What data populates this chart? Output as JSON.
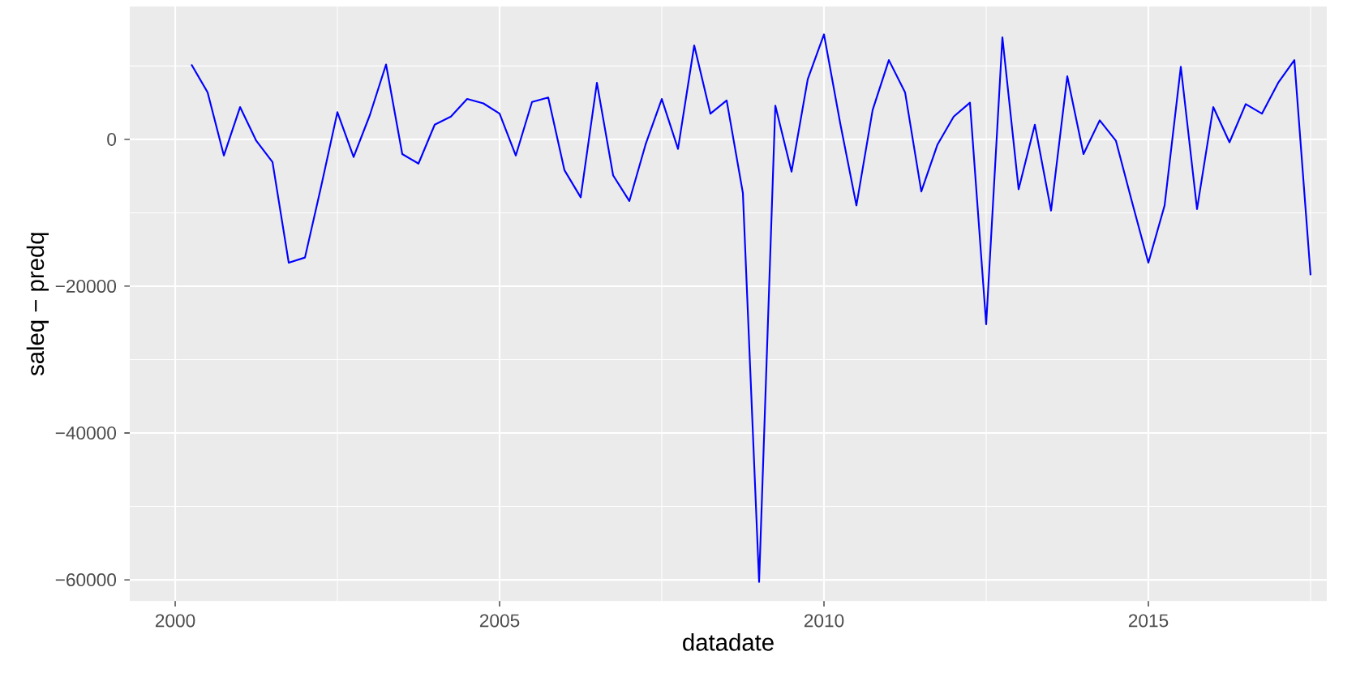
{
  "chart_data": {
    "type": "line",
    "xlabel": "datadate",
    "ylabel": "saleq − predq",
    "x": [
      2000.25,
      2000.5,
      2000.75,
      2001.0,
      2001.25,
      2001.5,
      2001.75,
      2002.0,
      2002.25,
      2002.5,
      2002.75,
      2003.0,
      2003.25,
      2003.5,
      2003.75,
      2004.0,
      2004.25,
      2004.5,
      2004.75,
      2005.0,
      2005.25,
      2005.5,
      2005.75,
      2006.0,
      2006.25,
      2006.5,
      2006.75,
      2007.0,
      2007.25,
      2007.5,
      2007.75,
      2008.0,
      2008.25,
      2008.5,
      2008.75,
      2009.0,
      2009.25,
      2009.5,
      2009.75,
      2010.0,
      2010.25,
      2010.5,
      2010.75,
      2011.0,
      2011.25,
      2011.5,
      2011.75,
      2012.0,
      2012.25,
      2012.5,
      2012.75,
      2013.0,
      2013.25,
      2013.5,
      2013.75,
      2014.0,
      2014.25,
      2014.5,
      2014.75,
      2015.0,
      2015.25,
      2015.5,
      2015.75,
      2016.0,
      2016.25,
      2016.5,
      2016.75,
      2017.0,
      2017.25,
      2017.5
    ],
    "series": [
      {
        "color": "#0000ff",
        "values": [
          10200,
          6400,
          -2200,
          4400,
          -200,
          -3100,
          -16800,
          -16100,
          -6400,
          3700,
          -2400,
          3300,
          10200,
          -2000,
          -3300,
          2000,
          3100,
          5500,
          4900,
          3500,
          -2200,
          5100,
          5700,
          -4200,
          -7900,
          7700,
          -4900,
          -8400,
          -700,
          5500,
          -1300,
          12800,
          3500,
          5300,
          -7300,
          -60300,
          4600,
          -4400,
          8200,
          14300,
          2200,
          -9000,
          4000,
          10800,
          6400,
          -7100,
          -700,
          3100,
          5000,
          -25200,
          13900,
          -6800,
          2000,
          -9700,
          8600,
          -2000,
          2600,
          -200,
          -8600,
          -16800,
          -9000,
          9900,
          -9500,
          4400,
          -400,
          4800,
          3500,
          7700,
          10800,
          -18500
        ]
      }
    ],
    "xlim": [
      1999.3,
      2017.75
    ],
    "ylim": [
      -62900,
      18100
    ],
    "xticks": [
      2000,
      2005,
      2010,
      2015
    ],
    "yticks": [
      {
        "value": -60000,
        "label": "−60000"
      },
      {
        "value": -40000,
        "label": "−40000"
      },
      {
        "value": -20000,
        "label": "−20000"
      },
      0
    ],
    "grid": true,
    "marker": "none",
    "line_style": "solid"
  }
}
